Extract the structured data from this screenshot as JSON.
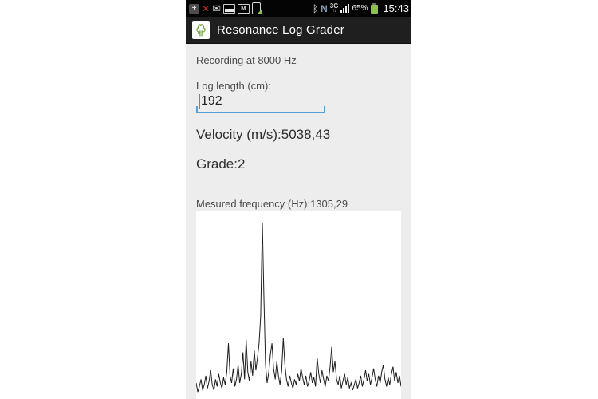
{
  "status_bar": {
    "time": "15:43",
    "battery_percent": "65%",
    "network_label": "3G",
    "network_arrows": "↑↓",
    "icons": {
      "plus_badge": "+",
      "missed_call": "✕",
      "message": "✉",
      "gmail": "M",
      "bluetooth": "ᛒ",
      "nfc": "N"
    }
  },
  "app_bar": {
    "title": "Resonance Log Grader"
  },
  "content": {
    "recording_label": "Recording at 8000 Hz",
    "log_length_label": "Log length (cm):",
    "log_length_value": "192",
    "velocity_label": "Velocity (m/s):5038,43",
    "grade_label": "Grade:2",
    "frequency_prefix": "Mesured fre",
    "frequency_underlined": "quency (Hz",
    "frequency_suffix": "):1305,29"
  },
  "colors": {
    "accent_blue": "#59a0d6",
    "underline_red": "#c43d32",
    "tree_green": "#76a83f",
    "battery_green": "#8bc34a",
    "app_bar_bg": "#1f1f1f",
    "content_bg": "#ededed"
  },
  "chart_data": {
    "type": "line",
    "title": "",
    "xlabel": "",
    "ylabel": "",
    "ylim": [
      0,
      1
    ],
    "grid": false,
    "legend": false,
    "line_color": "#1c1c1c",
    "background": "#ffffff",
    "description": "Amplitude spectrum of recorded audio; dominant resonance peak about one third from the left corresponding to the measured frequency 1305,29 Hz; noisy low-amplitude floor elsewhere. Axes unlabeled.",
    "values": [
      0.08,
      0.03,
      0.06,
      0.1,
      0.04,
      0.07,
      0.12,
      0.05,
      0.09,
      0.15,
      0.07,
      0.04,
      0.1,
      0.06,
      0.13,
      0.08,
      0.05,
      0.11,
      0.07,
      0.14,
      0.3,
      0.12,
      0.08,
      0.16,
      0.06,
      0.1,
      0.18,
      0.08,
      0.13,
      0.25,
      0.1,
      0.32,
      0.14,
      0.09,
      0.2,
      0.12,
      0.26,
      0.15,
      0.22,
      0.3,
      0.45,
      0.97,
      0.55,
      0.18,
      0.08,
      0.14,
      0.24,
      0.3,
      0.16,
      0.1,
      0.2,
      0.12,
      0.07,
      0.15,
      0.33,
      0.18,
      0.1,
      0.06,
      0.12,
      0.08,
      0.05,
      0.1,
      0.07,
      0.13,
      0.09,
      0.16,
      0.11,
      0.07,
      0.12,
      0.06,
      0.09,
      0.14,
      0.08,
      0.11,
      0.06,
      0.22,
      0.13,
      0.08,
      0.15,
      0.1,
      0.06,
      0.12,
      0.09,
      0.17,
      0.28,
      0.14,
      0.2,
      0.1,
      0.07,
      0.12,
      0.05,
      0.09,
      0.13,
      0.07,
      0.11,
      0.05,
      0.08,
      0.04,
      0.07,
      0.1,
      0.05,
      0.08,
      0.12,
      0.06,
      0.1,
      0.15,
      0.09,
      0.13,
      0.07,
      0.11,
      0.16,
      0.1,
      0.06,
      0.12,
      0.08,
      0.14,
      0.18,
      0.1,
      0.06,
      0.11,
      0.07,
      0.13,
      0.17,
      0.09,
      0.14,
      0.08,
      0.12,
      0.06
    ]
  }
}
